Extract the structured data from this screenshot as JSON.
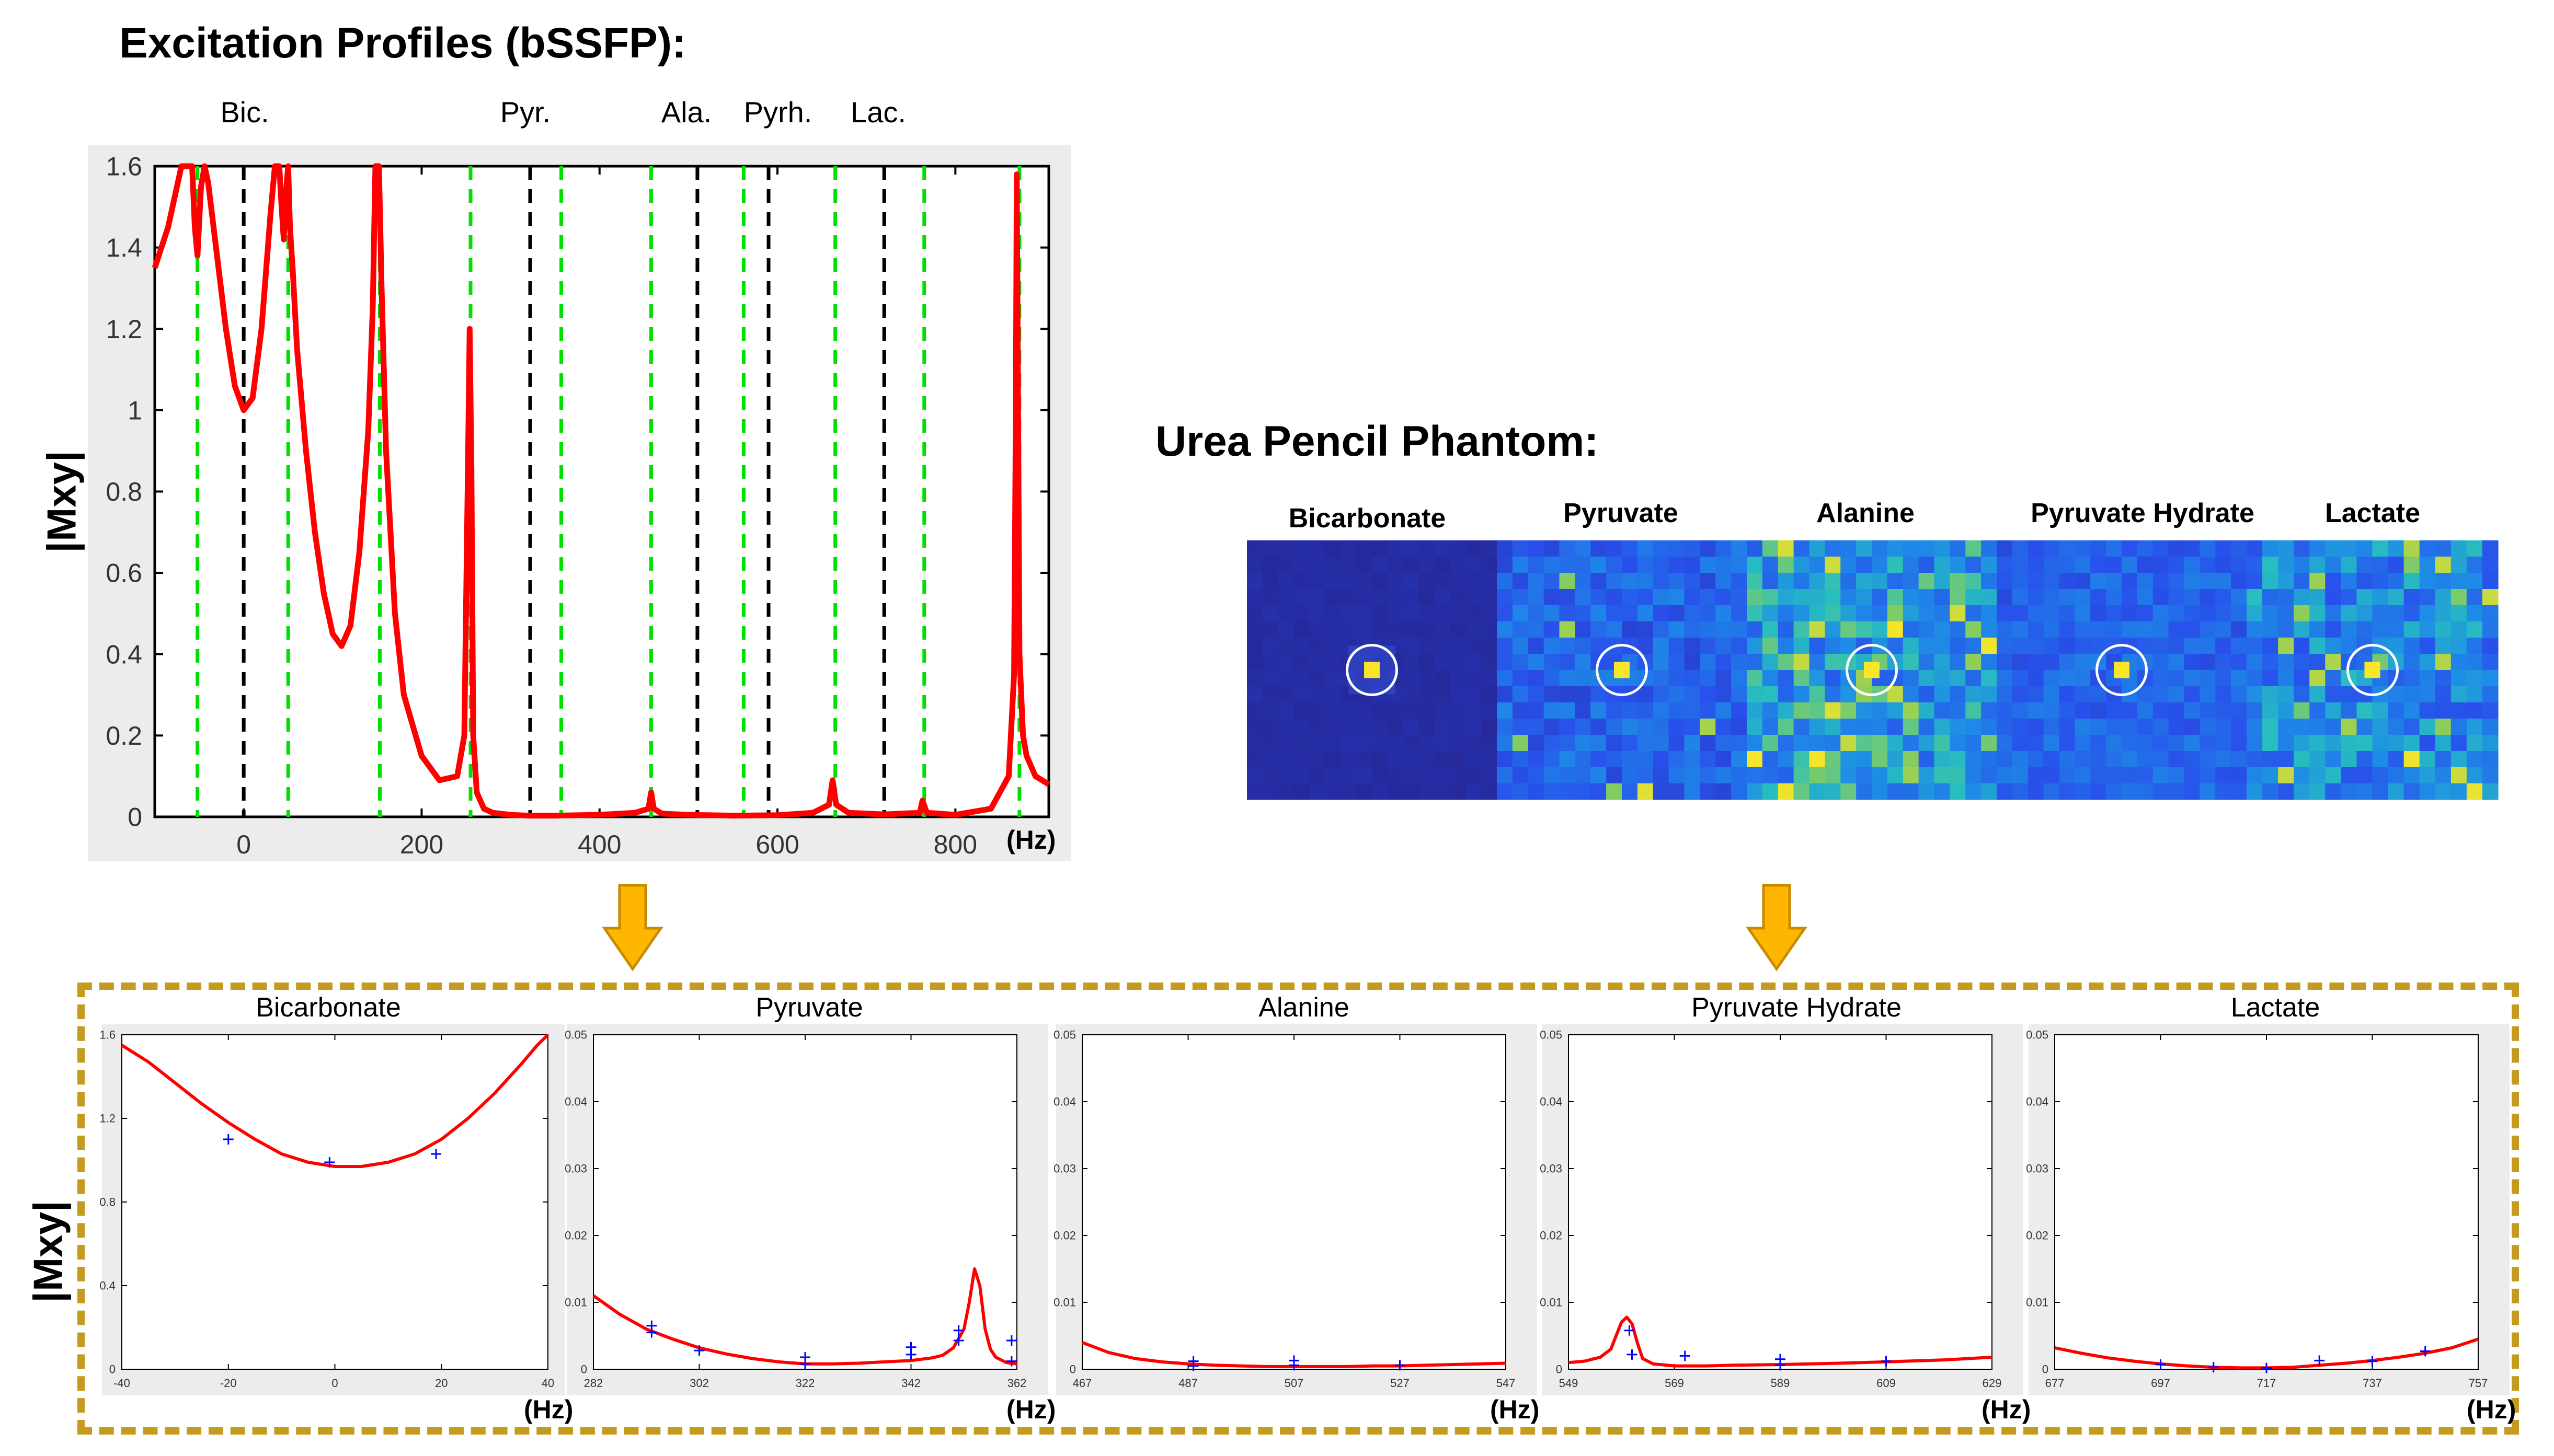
{
  "main_title": "Excitation Profiles (bSSFP):",
  "metabolite_labels": [
    "Bic.",
    "Pyr.",
    "Ala.",
    "Pyrh.",
    "Lac."
  ],
  "y_axis_label": "|Mxy|",
  "x_unit": "(Hz)",
  "phantom_title": "Urea Pencil Phantom:",
  "phantom_images": [
    "Bicarbonate",
    "Pyruvate",
    "Alanine",
    "Pyruvate Hydrate",
    "Lactate"
  ],
  "colors": {
    "profile_line": "#ff0000",
    "fit_points": "#0000ff",
    "green_guides": "#00e000",
    "black_guides": "#000000",
    "arrow": "#ffb600",
    "dashed_box": "#c49b1f",
    "panel_bg": "#ececec"
  },
  "icons": [
    "down-arrow-icon",
    "down-arrow-icon"
  ],
  "chart_data": [
    {
      "type": "line",
      "title": "",
      "xlabel": "(Hz)",
      "ylabel": "|Mxy|",
      "xlim": [
        -100,
        905
      ],
      "ylim": [
        0,
        1.6
      ],
      "xticks": [
        0,
        200,
        400,
        600,
        800
      ],
      "yticks": [
        0,
        0.2,
        0.4,
        0.6,
        0.8,
        1,
        1.2,
        1.4,
        1.6
      ],
      "ytick_labels": [
        "0",
        "0.2",
        "0.4",
        "0.6",
        "0.8",
        "1",
        "1.2",
        "1.4",
        "1.6"
      ],
      "green_dashed_lines_x": [
        -52,
        50,
        153,
        255,
        357,
        458,
        562,
        665,
        765,
        872
      ],
      "black_dashed_lines_x": [
        0,
        322,
        510,
        590,
        720
      ],
      "series": [
        {
          "x": [
            -100,
            -85,
            -70,
            -62,
            -58,
            -55,
            -52,
            -48,
            -44,
            -40,
            -30,
            -20,
            -10,
            0,
            10,
            20,
            30,
            35,
            38,
            40,
            42,
            45,
            48,
            50,
            52,
            55,
            60,
            70,
            80,
            90,
            100,
            110,
            120,
            130,
            140,
            145,
            148,
            150,
            152,
            155,
            160,
            170,
            180,
            200,
            220,
            240,
            248,
            252,
            254,
            256,
            258,
            262,
            270,
            280,
            300,
            320,
            350,
            400,
            440,
            455,
            458,
            461,
            470,
            500,
            550,
            600,
            640,
            658,
            662,
            666,
            680,
            720,
            760,
            763,
            768,
            800,
            840,
            860,
            866,
            868,
            869,
            870,
            872,
            876,
            880,
            890,
            905
          ],
          "y": [
            1.35,
            1.45,
            1.6,
            1.6,
            1.6,
            1.45,
            1.38,
            1.55,
            1.6,
            1.56,
            1.38,
            1.2,
            1.06,
            1.0,
            1.03,
            1.2,
            1.48,
            1.6,
            1.6,
            1.6,
            1.52,
            1.42,
            1.55,
            1.6,
            1.45,
            1.35,
            1.15,
            0.9,
            0.7,
            0.55,
            0.45,
            0.42,
            0.47,
            0.65,
            0.95,
            1.25,
            1.6,
            1.6,
            1.6,
            1.3,
            0.9,
            0.5,
            0.3,
            0.15,
            0.09,
            0.1,
            0.2,
            0.85,
            1.2,
            0.85,
            0.2,
            0.06,
            0.02,
            0.01,
            0.005,
            0.003,
            0.003,
            0.005,
            0.01,
            0.02,
            0.06,
            0.02,
            0.008,
            0.005,
            0.003,
            0.004,
            0.01,
            0.03,
            0.09,
            0.03,
            0.01,
            0.006,
            0.01,
            0.04,
            0.01,
            0.005,
            0.02,
            0.1,
            0.35,
            1.0,
            1.58,
            1.2,
            0.4,
            0.2,
            0.15,
            0.1,
            0.08
          ]
        }
      ]
    },
    {
      "type": "line",
      "title": "Bicarbonate",
      "xlabel": "(Hz)",
      "ylabel": "|Mxy|",
      "xlim": [
        -40,
        40
      ],
      "ylim": [
        0,
        1.6
      ],
      "xticks": [
        -40,
        -20,
        0,
        20,
        40
      ],
      "yticks": [
        0,
        0.4,
        0.8,
        1.2,
        1.6
      ],
      "ytick_labels": [
        "0",
        "0.4",
        "0.8",
        "1.2",
        "1.6"
      ],
      "series": [
        {
          "x": [
            -40,
            -35,
            -30,
            -25,
            -20,
            -15,
            -10,
            -5,
            0,
            5,
            10,
            15,
            20,
            25,
            30,
            35,
            38,
            40
          ],
          "y": [
            1.55,
            1.47,
            1.37,
            1.27,
            1.18,
            1.1,
            1.03,
            0.99,
            0.97,
            0.97,
            0.99,
            1.03,
            1.1,
            1.2,
            1.32,
            1.46,
            1.55,
            1.6
          ]
        }
      ],
      "points": {
        "x": [
          -20,
          -1,
          19
        ],
        "y": [
          1.1,
          0.99,
          1.03
        ]
      }
    },
    {
      "type": "line",
      "title": "Pyruvate",
      "xlabel": "(Hz)",
      "ylabel": "|Mxy|",
      "xlim": [
        282,
        362
      ],
      "ylim": [
        0,
        0.05
      ],
      "xticks": [
        282,
        302,
        322,
        342,
        362
      ],
      "yticks": [
        0,
        0.01,
        0.02,
        0.03,
        0.04,
        0.05
      ],
      "ytick_labels": [
        "0",
        "0.01",
        "0.02",
        "0.03",
        "0.04",
        "0.05"
      ],
      "series": [
        {
          "x": [
            282,
            287,
            292,
            297,
            302,
            307,
            312,
            317,
            322,
            327,
            332,
            337,
            342,
            346,
            348,
            350,
            352,
            353,
            354,
            355,
            356,
            357,
            358,
            360,
            362
          ],
          "y": [
            0.011,
            0.0082,
            0.006,
            0.0045,
            0.0032,
            0.0023,
            0.0016,
            0.0011,
            0.0008,
            0.0008,
            0.0009,
            0.0011,
            0.0013,
            0.0017,
            0.0021,
            0.0032,
            0.006,
            0.01,
            0.015,
            0.0125,
            0.006,
            0.003,
            0.0018,
            0.001,
            0.0008
          ]
        }
      ],
      "points": {
        "x": [
          293,
          293,
          302,
          322,
          322,
          342,
          342,
          351,
          351,
          361,
          361
        ],
        "y": [
          0.0055,
          0.0065,
          0.0028,
          0.0018,
          0.0008,
          0.0033,
          0.0022,
          0.0058,
          0.0043,
          0.0043,
          0.0012
        ]
      }
    },
    {
      "type": "line",
      "title": "Alanine",
      "xlabel": "(Hz)",
      "ylabel": "|Mxy|",
      "xlim": [
        467,
        547
      ],
      "ylim": [
        0,
        0.05
      ],
      "xticks": [
        467,
        487,
        507,
        527,
        547
      ],
      "yticks": [
        0,
        0.01,
        0.02,
        0.03,
        0.04,
        0.05
      ],
      "ytick_labels": [
        "0",
        "0.01",
        "0.02",
        "0.03",
        "0.04",
        "0.05"
      ],
      "series": [
        {
          "x": [
            467,
            472,
            477,
            482,
            487,
            492,
            497,
            502,
            507,
            512,
            517,
            522,
            527,
            532,
            537,
            542,
            547
          ],
          "y": [
            0.004,
            0.0025,
            0.0016,
            0.0011,
            0.0008,
            0.0006,
            0.0005,
            0.0004,
            0.0004,
            0.0004,
            0.0004,
            0.0005,
            0.0005,
            0.0006,
            0.0007,
            0.0008,
            0.0009
          ]
        }
      ],
      "points": {
        "x": [
          488,
          488,
          507,
          507,
          527
        ],
        "y": [
          0.0012,
          0.0005,
          0.0013,
          0.0006,
          0.0006
        ]
      }
    },
    {
      "type": "line",
      "title": "Pyruvate Hydrate",
      "xlabel": "(Hz)",
      "ylabel": "|Mxy|",
      "xlim": [
        549,
        629
      ],
      "ylim": [
        0,
        0.05
      ],
      "xticks": [
        549,
        569,
        589,
        609,
        629
      ],
      "yticks": [
        0,
        0.01,
        0.02,
        0.03,
        0.04,
        0.05
      ],
      "ytick_labels": [
        "0",
        "0.01",
        "0.02",
        "0.03",
        "0.04",
        "0.05"
      ],
      "series": [
        {
          "x": [
            549,
            552,
            555,
            557,
            558,
            559,
            560,
            561,
            562,
            563,
            565,
            569,
            575,
            580,
            589,
            600,
            609,
            620,
            629
          ],
          "y": [
            0.001,
            0.0012,
            0.0018,
            0.003,
            0.005,
            0.007,
            0.0078,
            0.0068,
            0.004,
            0.0016,
            0.0008,
            0.0005,
            0.0005,
            0.0006,
            0.0007,
            0.0009,
            0.0011,
            0.0014,
            0.0018
          ]
        }
      ],
      "points": {
        "x": [
          560.5,
          561,
          571,
          589,
          589,
          609
        ],
        "y": [
          0.0058,
          0.0022,
          0.002,
          0.0015,
          0.0006,
          0.0012
        ]
      }
    },
    {
      "type": "line",
      "title": "Lactate",
      "xlabel": "(Hz)",
      "ylabel": "|Mxy|",
      "xlim": [
        677,
        757
      ],
      "ylim": [
        0,
        0.05
      ],
      "xticks": [
        677,
        697,
        717,
        737,
        757
      ],
      "yticks": [
        0,
        0.01,
        0.02,
        0.03,
        0.04,
        0.05
      ],
      "ytick_labels": [
        "0",
        "0.01",
        "0.02",
        "0.03",
        "0.04",
        "0.05"
      ],
      "series": [
        {
          "x": [
            677,
            682,
            687,
            692,
            697,
            702,
            707,
            712,
            717,
            722,
            727,
            732,
            737,
            742,
            747,
            752,
            757
          ],
          "y": [
            0.0032,
            0.0024,
            0.0017,
            0.0012,
            0.0008,
            0.0005,
            0.0003,
            0.0002,
            0.0002,
            0.0003,
            0.0006,
            0.0009,
            0.0013,
            0.0018,
            0.0024,
            0.0032,
            0.0045
          ]
        }
      ],
      "points": {
        "x": [
          697,
          707,
          717,
          727,
          737,
          747
        ],
        "y": [
          0.0007,
          0.0003,
          0.0002,
          0.0013,
          0.0012,
          0.0027
        ]
      }
    }
  ]
}
